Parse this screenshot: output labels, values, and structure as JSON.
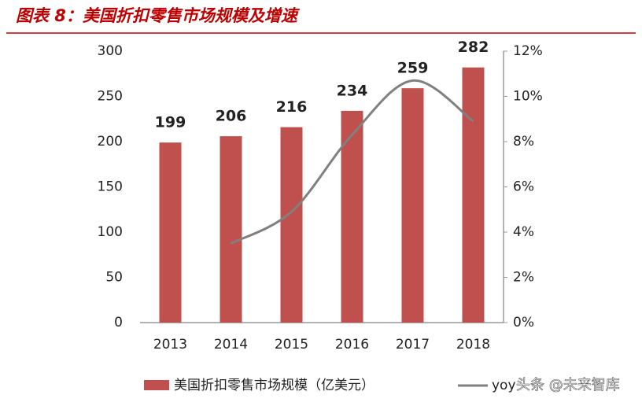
{
  "chart_data": {
    "type": "bar-line",
    "title": "图表 8：美国折扣零售市场规模及增速",
    "categories": [
      "2013",
      "2014",
      "2015",
      "2016",
      "2017",
      "2018"
    ],
    "series": [
      {
        "name": "美国折扣零售市场规模（亿美元）",
        "color": "#c0504d",
        "type": "bar",
        "values": [
          199,
          206,
          216,
          234,
          259,
          282
        ]
      },
      {
        "name": "yoy",
        "color": "#808080",
        "type": "line",
        "axis": "y2",
        "values": [
          null,
          3.5,
          4.9,
          8.3,
          10.7,
          8.9
        ]
      }
    ],
    "ylim": [
      0,
      300
    ],
    "yticks": [
      0,
      50,
      100,
      150,
      200,
      250,
      300
    ],
    "y2lim": [
      0,
      12
    ],
    "y2ticks": [
      {
        "value": 0,
        "label": "0%"
      },
      {
        "value": 2,
        "label": "2%"
      },
      {
        "value": 4,
        "label": "4%"
      },
      {
        "value": 6,
        "label": "6%"
      },
      {
        "value": 8,
        "label": "8%"
      },
      {
        "value": 10,
        "label": "10%"
      },
      {
        "value": 12,
        "label": "12%"
      }
    ],
    "grid": false
  },
  "watermark": "头条 @未来智库"
}
